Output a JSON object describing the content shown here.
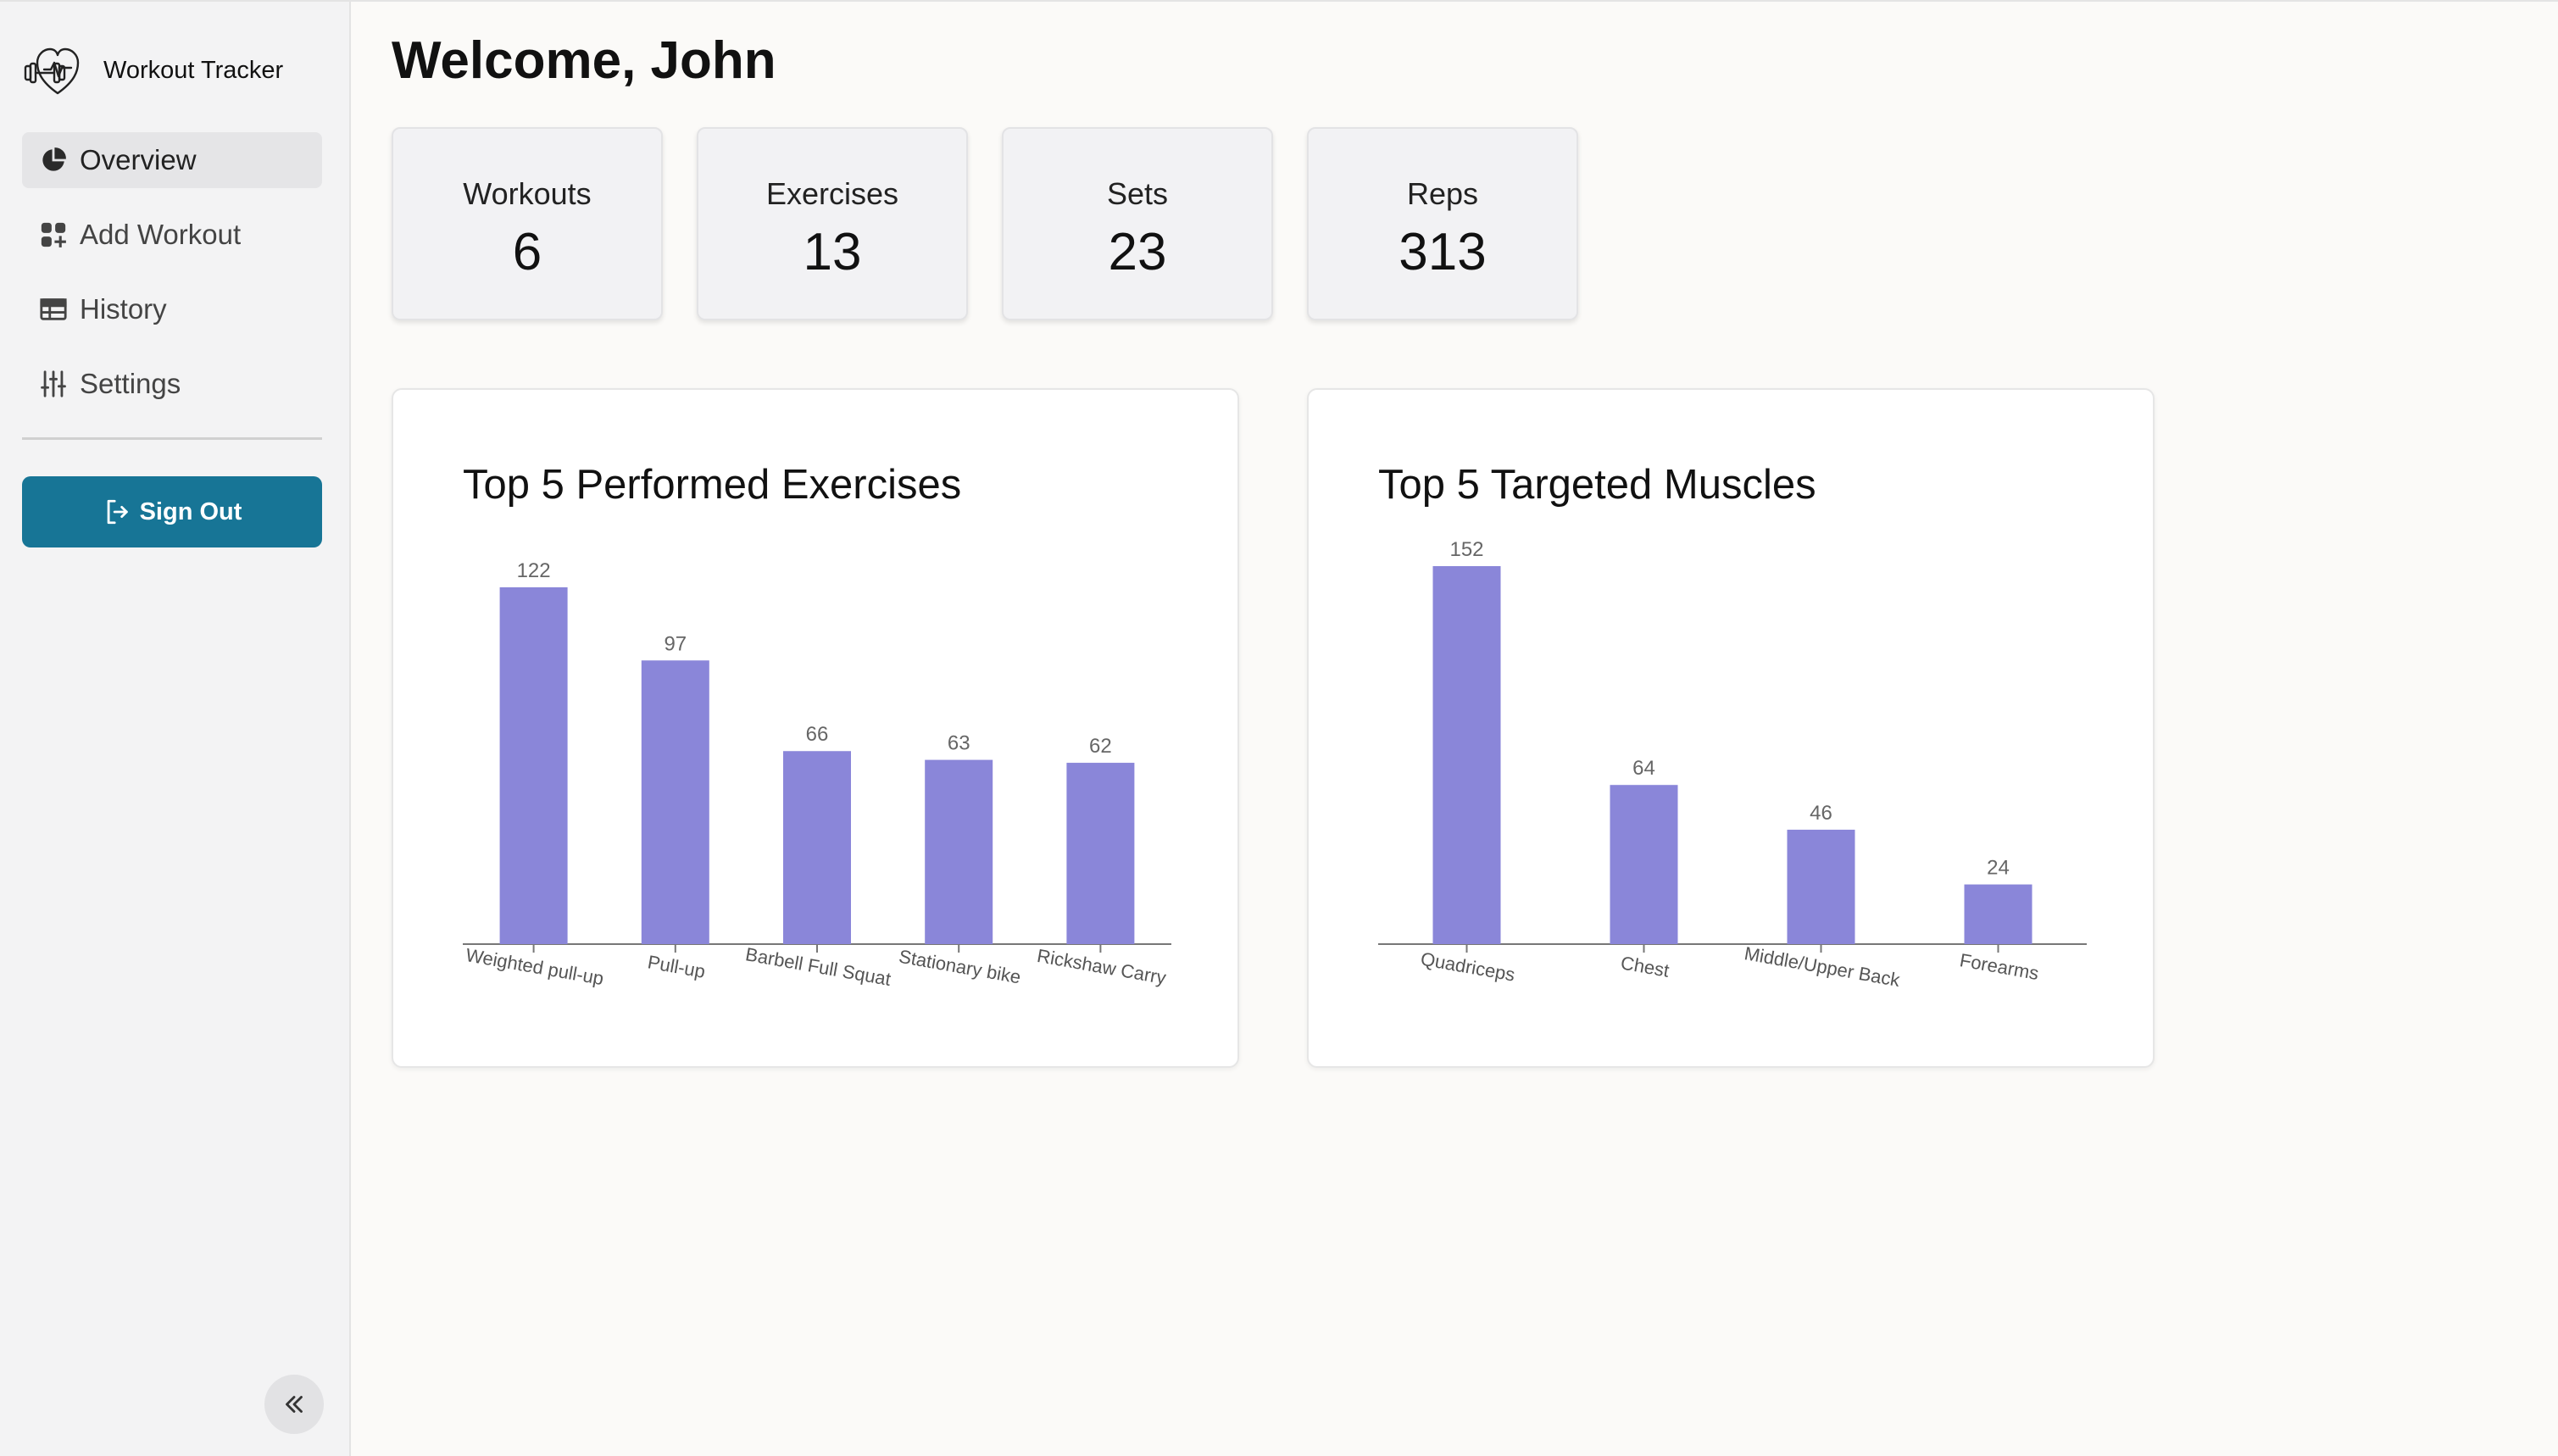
{
  "sidebar": {
    "brand": "Workout Tracker",
    "brand_icon": "heart-dumbbell-icon",
    "items": [
      {
        "label": "Overview",
        "icon": "pie-chart-icon",
        "active": true
      },
      {
        "label": "Add Workout",
        "icon": "grid-plus-icon",
        "active": false
      },
      {
        "label": "History",
        "icon": "table-icon",
        "active": false
      },
      {
        "label": "Settings",
        "icon": "sliders-icon",
        "active": false
      }
    ],
    "signout_label": "Sign Out",
    "signout_icon": "sign-out-icon",
    "collapse_icon": "double-chevron-left-icon"
  },
  "main": {
    "title": "Welcome, John",
    "stats": [
      {
        "label": "Workouts",
        "value": "6"
      },
      {
        "label": "Exercises",
        "value": "13"
      },
      {
        "label": "Sets",
        "value": "23"
      },
      {
        "label": "Reps",
        "value": "313"
      }
    ]
  },
  "colors": {
    "accent": "#177596",
    "bar": "#8a86d9"
  },
  "chart_data": [
    {
      "type": "bar",
      "title": "Top 5 Performed Exercises",
      "categories": [
        "Weighted pull-up",
        "Pull-up",
        "Barbell Full Squat",
        "Stationary bike",
        "Rickshaw Carry"
      ],
      "values": [
        122,
        97,
        66,
        63,
        62
      ],
      "xlabel": "",
      "ylabel": "",
      "ylim": [
        0,
        130
      ]
    },
    {
      "type": "bar",
      "title": "Top 5 Targeted Muscles",
      "categories": [
        "Quadriceps",
        "Chest",
        "Middle/Upper Back",
        "Forearms"
      ],
      "values": [
        152,
        64,
        46,
        24
      ],
      "xlabel": "",
      "ylabel": "",
      "ylim": [
        0,
        160
      ]
    }
  ]
}
